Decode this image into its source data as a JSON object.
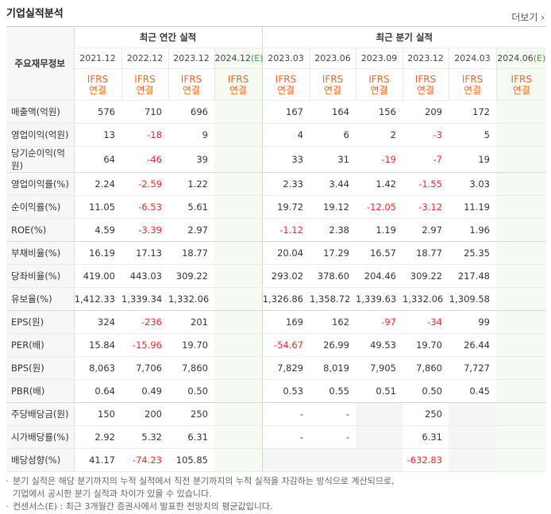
{
  "header": {
    "title": "기업실적분석",
    "more": "더보기"
  },
  "table": {
    "corner": "주요재무정보",
    "groups": [
      {
        "label": "최근 연간 실적",
        "span": 4
      },
      {
        "label": "최근 분기 실적",
        "span": 6
      }
    ],
    "columns": [
      {
        "period": "2021.12",
        "accounting": [
          "IFRS",
          "연결"
        ]
      },
      {
        "period": "2022.12",
        "accounting": [
          "IFRS",
          "연결"
        ]
      },
      {
        "period": "2023.12",
        "accounting": [
          "IFRS",
          "연결"
        ]
      },
      {
        "period": "2024.12",
        "estimate": "(E)",
        "accounting": [
          "IFRS",
          "연결"
        ]
      },
      {
        "period": "2023.03",
        "accounting": [
          "IFRS",
          "연결"
        ]
      },
      {
        "period": "2023.06",
        "accounting": [
          "IFRS",
          "연결"
        ]
      },
      {
        "period": "2023.09",
        "accounting": [
          "IFRS",
          "연결"
        ]
      },
      {
        "period": "2023.12",
        "accounting": [
          "IFRS",
          "연결"
        ]
      },
      {
        "period": "2024.03",
        "accounting": [
          "IFRS",
          "연결"
        ]
      },
      {
        "period": "2024.06",
        "estimate": "(E)",
        "accounting": [
          "IFRS",
          "연결"
        ]
      }
    ],
    "rows": [
      {
        "label": "매출액(억원)",
        "values": [
          "576",
          "710",
          "696",
          null,
          "167",
          "164",
          "156",
          "209",
          "172",
          null
        ]
      },
      {
        "label": "영업이익(억원)",
        "values": [
          "13",
          "-18",
          "9",
          null,
          "4",
          "6",
          "2",
          "-3",
          "5",
          null
        ]
      },
      {
        "label": "당기순이익(억원)",
        "values": [
          "64",
          "-46",
          "39",
          null,
          "33",
          "31",
          "-19",
          "-7",
          "19",
          null
        ]
      },
      {
        "label": "영업이익률(%)",
        "values": [
          "2.24",
          "-2.59",
          "1.22",
          null,
          "2.33",
          "3.44",
          "1.42",
          "-1.55",
          "3.03",
          null
        ]
      },
      {
        "label": "순이익률(%)",
        "values": [
          "11.05",
          "-6.53",
          "5.61",
          null,
          "19.72",
          "19.12",
          "-12.05",
          "-3.12",
          "11.19",
          null
        ]
      },
      {
        "label": "ROE(%)",
        "values": [
          "4.59",
          "-3.39",
          "2.97",
          null,
          "-1.12",
          "2.38",
          "1.19",
          "2.97",
          "1.96",
          null
        ]
      },
      {
        "label": "부채비율(%)",
        "values": [
          "16.19",
          "17.13",
          "18.77",
          null,
          "20.04",
          "17.29",
          "16.57",
          "18.77",
          "25.35",
          null
        ]
      },
      {
        "label": "당좌비율(%)",
        "values": [
          "419.00",
          "443.03",
          "309.22",
          null,
          "293.02",
          "378.60",
          "204.46",
          "309.22",
          "217.48",
          null
        ]
      },
      {
        "label": "유보율(%)",
        "values": [
          "1,412.33",
          "1,339.34",
          "1,332.06",
          null,
          "1,326.86",
          "1,358.72",
          "1,339.63",
          "1,332.06",
          "1,309.58",
          null
        ]
      },
      {
        "label": "EPS(원)",
        "values": [
          "324",
          "-236",
          "201",
          null,
          "169",
          "162",
          "-97",
          "-34",
          "99",
          null
        ]
      },
      {
        "label": "PER(배)",
        "values": [
          "15.84",
          "-15.96",
          "19.70",
          null,
          "-54.67",
          "26.99",
          "49.53",
          "19.70",
          "26.44",
          null
        ]
      },
      {
        "label": "BPS(원)",
        "values": [
          "8,063",
          "7,706",
          "7,860",
          null,
          "7,829",
          "8,019",
          "7,905",
          "7,860",
          "7,727",
          null
        ]
      },
      {
        "label": "PBR(배)",
        "values": [
          "0.64",
          "0.49",
          "0.50",
          null,
          "0.53",
          "0.55",
          "0.51",
          "0.50",
          "0.45",
          null
        ]
      },
      {
        "label": "주당배당금(원)",
        "values": [
          "150",
          "200",
          "250",
          null,
          "-",
          "-",
          null,
          "250",
          null,
          null
        ]
      },
      {
        "label": "시가배당률(%)",
        "values": [
          "2.92",
          "5.32",
          "6.31",
          null,
          "-",
          "-",
          null,
          "6.31",
          null,
          null
        ]
      },
      {
        "label": "배당성향(%)",
        "values": [
          "41.17",
          "-74.23",
          "105.85",
          null,
          null,
          null,
          null,
          "-632.83",
          null,
          null
        ]
      }
    ]
  },
  "notes": [
    [
      "분기 실적은 해당 분기까지의 누적 실적에서 직전 분기까지의 누적 실적을 차감하는 방식으로 계산되므로,",
      "기업에서 공시한 분기 실적과 차이가 있을 수 있습니다."
    ],
    [
      "컨센서스(E) : 최근 3개월간 증권사에서 발표한 전망치의 평균값입니다."
    ]
  ]
}
